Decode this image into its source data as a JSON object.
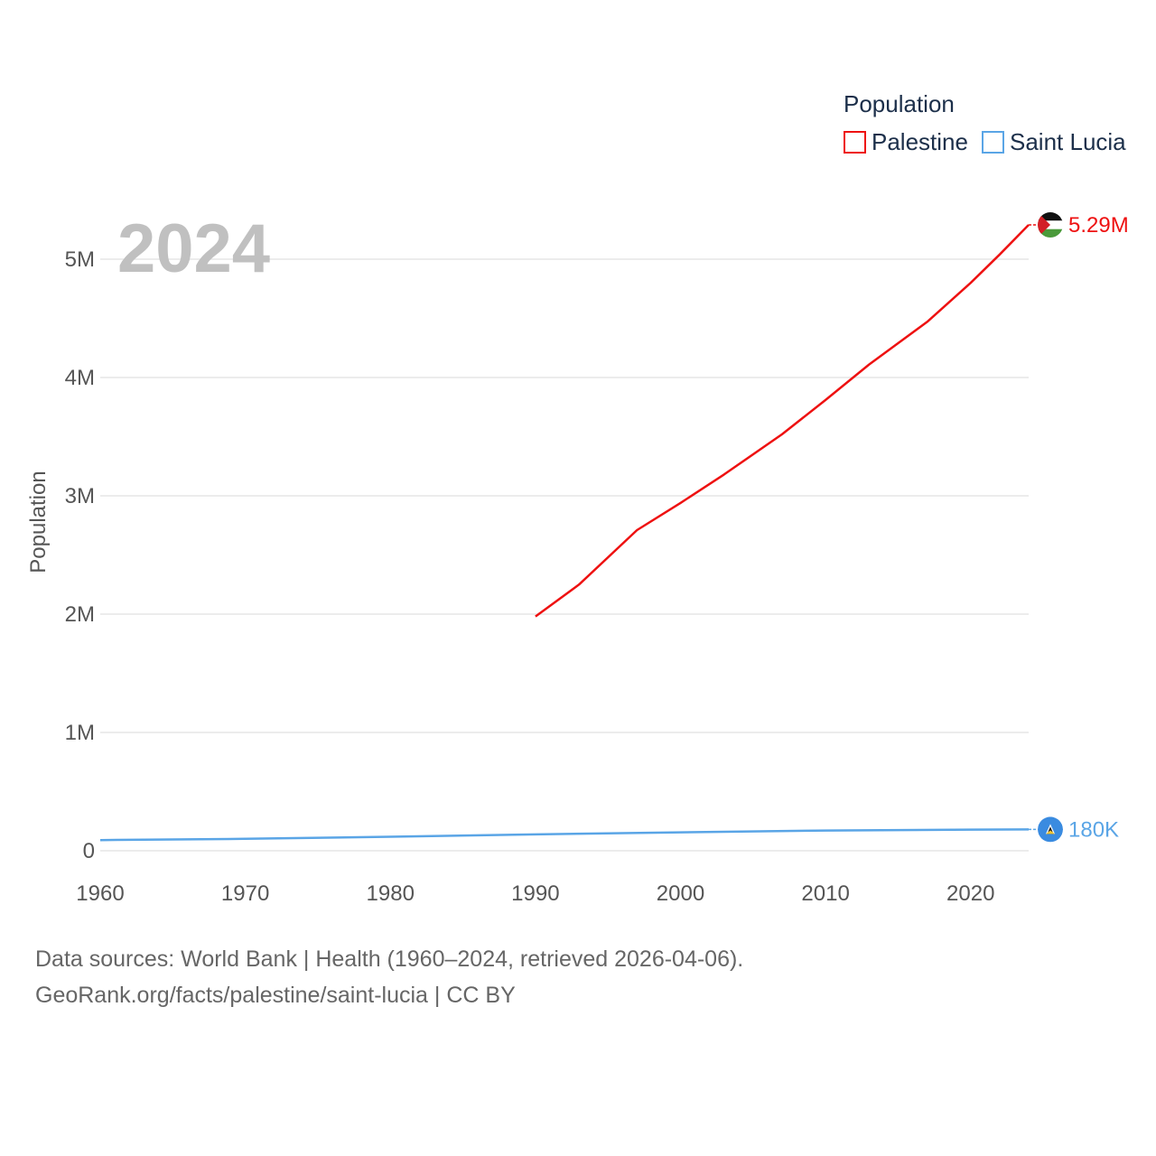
{
  "chart_data": {
    "type": "line",
    "ylabel": "Population",
    "xlabel": "",
    "year_watermark": "2024",
    "legend_title": "Population",
    "xlim": [
      1960,
      2024
    ],
    "ylim": [
      0,
      5000000
    ],
    "x_ticks": [
      1960,
      1970,
      1980,
      1990,
      2000,
      2010,
      2020
    ],
    "x_tick_labels": [
      "1960",
      "1970",
      "1980",
      "1990",
      "2000",
      "2010",
      "2020"
    ],
    "y_ticks": [
      0,
      1000000,
      2000000,
      3000000,
      4000000,
      5000000
    ],
    "y_tick_labels": [
      "0",
      "1M",
      "2M",
      "3M",
      "4M",
      "5M"
    ],
    "grid": true,
    "series": [
      {
        "name": "Palestine",
        "color": "#ee1111",
        "end_label": "5.29M",
        "flag_icon": "palestine-flag-icon",
        "x": [
          1990,
          1993,
          1997,
          2000,
          2003,
          2007,
          2010,
          2013,
          2017,
          2020,
          2022,
          2024
        ],
        "y": [
          1980000,
          2250000,
          2710000,
          2940000,
          3180000,
          3520000,
          3810000,
          4110000,
          4470000,
          4800000,
          5040000,
          5290000
        ]
      },
      {
        "name": "Saint Lucia",
        "color": "#5aa5e6",
        "end_label": "180K",
        "flag_icon": "saint-lucia-flag-icon",
        "x": [
          1960,
          1970,
          1980,
          1990,
          2000,
          2010,
          2020,
          2024
        ],
        "y": [
          90000,
          101000,
          118000,
          138000,
          156000,
          171000,
          179000,
          180000
        ]
      }
    ]
  },
  "source": {
    "line1": "Data sources: World Bank | Health (1960–2024, retrieved 2026-04-06).",
    "line2": "GeoRank.org/facts/palestine/saint-lucia | CC BY"
  }
}
